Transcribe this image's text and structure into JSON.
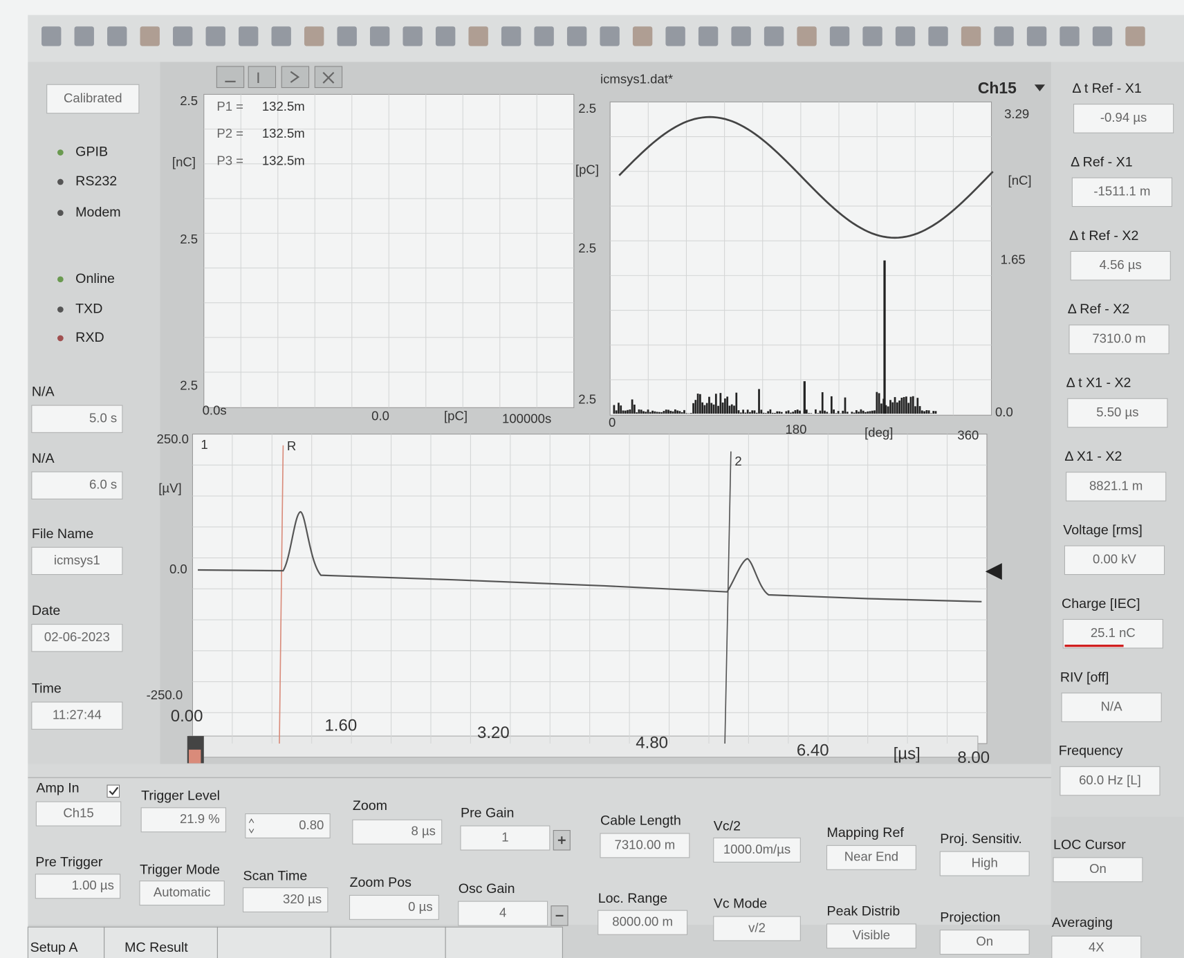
{
  "left_panel": {
    "status": "Calibrated",
    "indicators": [
      "GPIB",
      "RS232",
      "Modem",
      "Online",
      "TXD",
      "RXD"
    ],
    "fields": [
      {
        "label": "N/A",
        "value": "5.0 s"
      },
      {
        "label": "N/A",
        "value": "6.0 s"
      },
      {
        "label": "File Name",
        "value": "icmsys1"
      },
      {
        "label": "Date",
        "value": "02-06-2023"
      },
      {
        "label": "Time",
        "value": "11:27:44"
      }
    ]
  },
  "header": {
    "title": "icmsys1.dat*",
    "channel": "Ch15"
  },
  "charge_plot": {
    "y_labels": [
      "2.5",
      "2.5",
      "2.5"
    ],
    "y_unit": "[nC]",
    "x_labels": [
      "0.0s",
      "0.0",
      "[pC]",
      "100000s"
    ],
    "readouts": [
      {
        "label": "P1 =",
        "value": "132.5m"
      },
      {
        "label": "P2 =",
        "value": "132.5m"
      },
      {
        "label": "P3 =",
        "value": "132.5m"
      }
    ]
  },
  "phase_plot": {
    "y_labels": [
      "2.5",
      "2.5",
      "2.5"
    ],
    "y_unit": "[pC]",
    "y2_labels": [
      "3.29",
      "1.65",
      "0.0"
    ],
    "y2_unit": "[nC]",
    "x_labels": [
      "0",
      "180",
      "[deg]",
      "360"
    ]
  },
  "waveform_plot": {
    "y_labels": [
      "250.0",
      "0.0",
      "-250.0"
    ],
    "y_unit": "[µV]",
    "cursors": [
      "1",
      "R",
      "2"
    ],
    "x_labels": [
      "0.00",
      "1.60",
      "3.20",
      "4.80",
      "6.40",
      "[µs]",
      "8.00"
    ]
  },
  "right_panel": {
    "fields": [
      {
        "label": "Δ t Ref - X1",
        "value": "-0.94 µs"
      },
      {
        "label": "Δ Ref - X1",
        "value": "-1511.1 m"
      },
      {
        "label": "Δ t Ref - X2",
        "value": "4.56 µs"
      },
      {
        "label": "Δ Ref - X2",
        "value": "7310.0 m"
      },
      {
        "label": "Δ t X1 - X2",
        "value": "5.50 µs"
      },
      {
        "label": "Δ X1 - X2",
        "value": "8821.1 m"
      },
      {
        "label": "Voltage [rms]",
        "value": "0.00 kV"
      },
      {
        "label": "Charge [IEC]",
        "value": "25.1 nC"
      },
      {
        "label": "RIV [off]",
        "value": "N/A"
      },
      {
        "label": "Frequency",
        "value": "60.0 Hz [L]"
      }
    ]
  },
  "controls": [
    {
      "label": "Amp In",
      "value": "Ch15"
    },
    {
      "label": "Trigger Level",
      "value": "21.9 %"
    },
    {
      "label": "Zoom",
      "value": "8 µs"
    },
    {
      "label": "Pre Gain",
      "value": "1"
    },
    {
      "label": "Cable Length",
      "value": "7310.00 m"
    },
    {
      "label": "Vc/2",
      "value": "1000.0m/µs"
    },
    {
      "label": "Mapping Ref",
      "value": "Near End"
    },
    {
      "label": "Proj. Sensitiv.",
      "value": "High"
    },
    {
      "label": "LOC Cursor",
      "value": "On"
    },
    {
      "label": "Pre Trigger",
      "value": "1.00 µs"
    },
    {
      "label": "Trigger Mode",
      "value": "Automatic"
    },
    {
      "label": "Scan Time",
      "value": "320 µs"
    },
    {
      "label": "Zoom Pos",
      "value": "0 µs"
    },
    {
      "label": "Osc Gain",
      "value": "4"
    },
    {
      "label": "Loc. Range",
      "value": "8000.00 m"
    },
    {
      "label": "Vc Mode",
      "value": "v/2"
    },
    {
      "label": "Peak Distrib",
      "value": "Visible"
    },
    {
      "label": "Projection",
      "value": "On"
    },
    {
      "label": "Averaging",
      "value": "4X"
    }
  ],
  "gain_value": "0.80",
  "tabs": [
    "Setup A",
    "MC Result"
  ]
}
